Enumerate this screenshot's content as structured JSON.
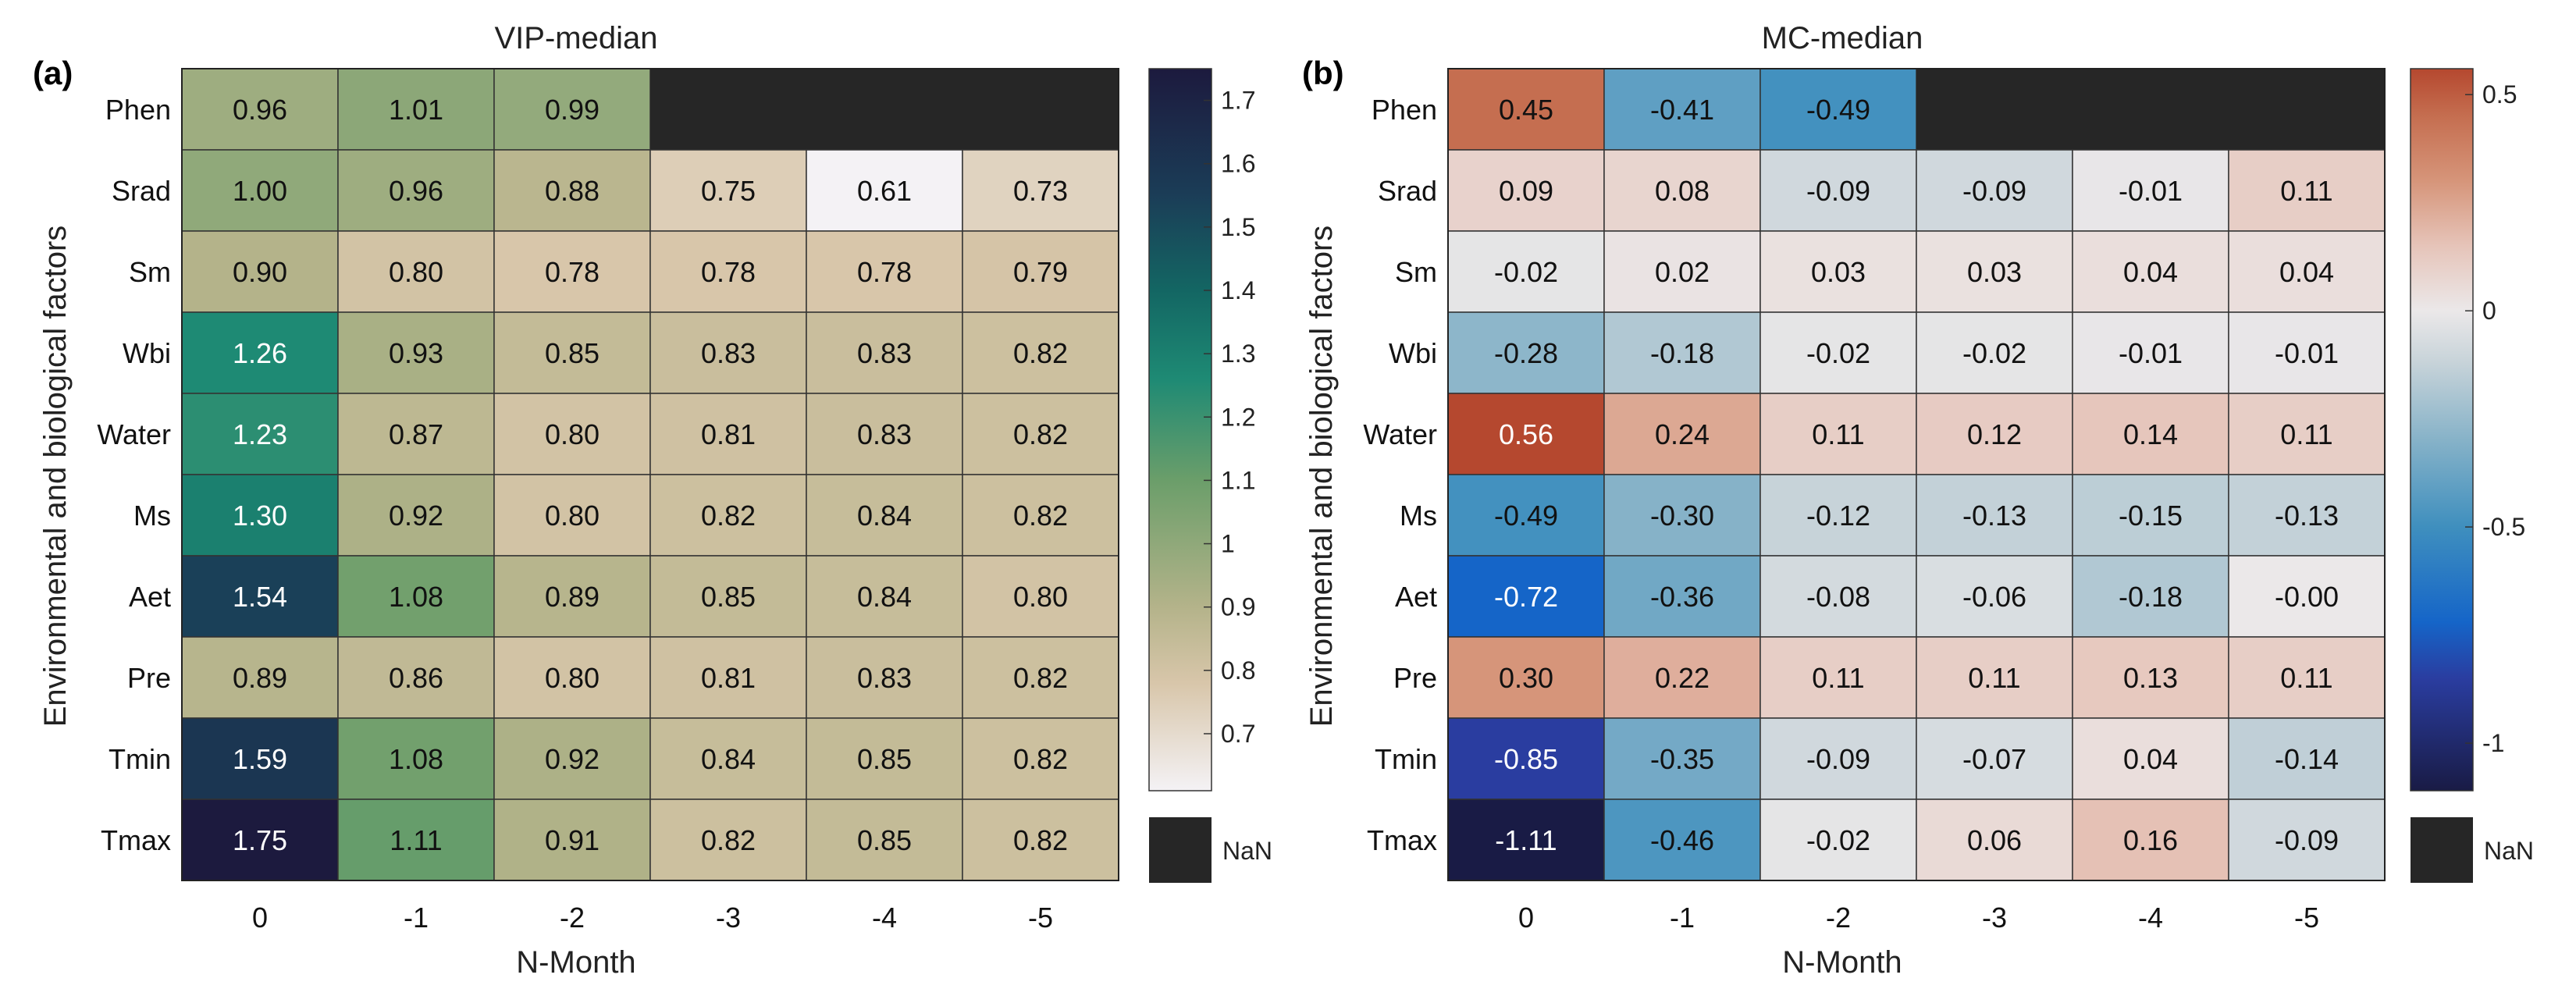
{
  "chart_data": [
    {
      "type": "heatmap",
      "panel_label": "(a)",
      "title": "VIP-median",
      "xlabel": "N-Month",
      "ylabel": "Environmental and biological factors",
      "x_categories": [
        "0",
        "-1",
        "-2",
        "-3",
        "-4",
        "-5"
      ],
      "y_categories": [
        "Phen",
        "Srad",
        "Sm",
        "Wbi",
        "Water",
        "Ms",
        "Aet",
        "Pre",
        "Tmin",
        "Tmax"
      ],
      "cell_labels": [
        [
          "0.96",
          "1.01",
          "0.99",
          null,
          null,
          null
        ],
        [
          "1.00",
          "0.96",
          "0.88",
          "0.75",
          "0.61",
          "0.73"
        ],
        [
          "0.90",
          "0.80",
          "0.78",
          "0.78",
          "0.78",
          "0.79"
        ],
        [
          "1.26",
          "0.93",
          "0.85",
          "0.83",
          "0.83",
          "0.82"
        ],
        [
          "1.23",
          "0.87",
          "0.80",
          "0.81",
          "0.83",
          "0.82"
        ],
        [
          "1.30",
          "0.92",
          "0.80",
          "0.82",
          "0.84",
          "0.82"
        ],
        [
          "1.54",
          "1.08",
          "0.89",
          "0.85",
          "0.84",
          "0.80"
        ],
        [
          "0.89",
          "0.86",
          "0.80",
          "0.81",
          "0.83",
          "0.82"
        ],
        [
          "1.59",
          "1.08",
          "0.92",
          "0.84",
          "0.85",
          "0.82"
        ],
        [
          "1.75",
          "1.11",
          "0.91",
          "0.82",
          "0.85",
          "0.82"
        ]
      ],
      "colorbar": {
        "range": [
          0.61,
          1.75
        ],
        "ticks": [
          "1.7",
          "1.6",
          "1.5",
          "1.4",
          "1.3",
          "1.2",
          "1.1",
          "1",
          "0.9",
          "0.8",
          "0.7"
        ],
        "tick_values": [
          1.7,
          1.6,
          1.5,
          1.4,
          1.3,
          1.2,
          1.1,
          1.0,
          0.9,
          0.8,
          0.7
        ],
        "colors": [
          {
            "value": 0.61,
            "color": "#f4f2f5"
          },
          {
            "value": 0.78,
            "color": "#d8c6aa"
          },
          {
            "value": 0.9,
            "color": "#b4b38a"
          },
          {
            "value": 1.1,
            "color": "#6b9e6a"
          },
          {
            "value": 1.26,
            "color": "#1e8a74"
          },
          {
            "value": 1.4,
            "color": "#136663"
          },
          {
            "value": 1.55,
            "color": "#1b3d57"
          },
          {
            "value": 1.75,
            "color": "#1c1a3e"
          }
        ],
        "nan_label": "NaN",
        "nan_color": "#262626"
      }
    },
    {
      "type": "heatmap",
      "panel_label": "(b)",
      "title": "MC-median",
      "xlabel": "N-Month",
      "ylabel": "Environmental and biological factors",
      "x_categories": [
        "0",
        "-1",
        "-2",
        "-3",
        "-4",
        "-5"
      ],
      "y_categories": [
        "Phen",
        "Srad",
        "Sm",
        "Wbi",
        "Water",
        "Ms",
        "Aet",
        "Pre",
        "Tmin",
        "Tmax"
      ],
      "cell_labels": [
        [
          "0.45",
          "-0.41",
          "-0.49",
          null,
          null,
          null
        ],
        [
          "0.09",
          "0.08",
          "-0.09",
          "-0.09",
          "-0.01",
          "0.11"
        ],
        [
          "-0.02",
          "0.02",
          "0.03",
          "0.03",
          "0.04",
          "0.04"
        ],
        [
          "-0.28",
          "-0.18",
          "-0.02",
          "-0.02",
          "-0.01",
          "-0.01"
        ],
        [
          "0.56",
          "0.24",
          "0.11",
          "0.12",
          "0.14",
          "0.11"
        ],
        [
          "-0.49",
          "-0.30",
          "-0.12",
          "-0.13",
          "-0.15",
          "-0.13"
        ],
        [
          "-0.72",
          "-0.36",
          "-0.08",
          "-0.06",
          "-0.18",
          "-0.00"
        ],
        [
          "0.30",
          "0.22",
          "0.11",
          "0.11",
          "0.13",
          "0.11"
        ],
        [
          "-0.85",
          "-0.35",
          "-0.09",
          "-0.07",
          "0.04",
          "-0.14"
        ],
        [
          "-1.11",
          "-0.46",
          "-0.02",
          "0.06",
          "0.16",
          "-0.09"
        ]
      ],
      "colorbar": {
        "range": [
          -1.11,
          0.56
        ],
        "ticks": [
          "0.5",
          "0",
          "-0.5",
          "-1"
        ],
        "tick_values": [
          0.5,
          0.0,
          -0.5,
          -1.0
        ],
        "colors": [
          {
            "value": -1.11,
            "color": "#191b45"
          },
          {
            "value": -0.85,
            "color": "#2a3da0"
          },
          {
            "value": -0.72,
            "color": "#1565c8"
          },
          {
            "value": -0.5,
            "color": "#3f8fbe"
          },
          {
            "value": -0.3,
            "color": "#86b2c8"
          },
          {
            "value": -0.12,
            "color": "#c7d3d9"
          },
          {
            "value": 0.0,
            "color": "#ebe8e9"
          },
          {
            "value": 0.15,
            "color": "#e6c4b9"
          },
          {
            "value": 0.3,
            "color": "#d6957a"
          },
          {
            "value": 0.45,
            "color": "#c56e50"
          },
          {
            "value": 0.56,
            "color": "#b5482f"
          }
        ],
        "nan_label": "NaN",
        "nan_color": "#262626"
      }
    }
  ]
}
